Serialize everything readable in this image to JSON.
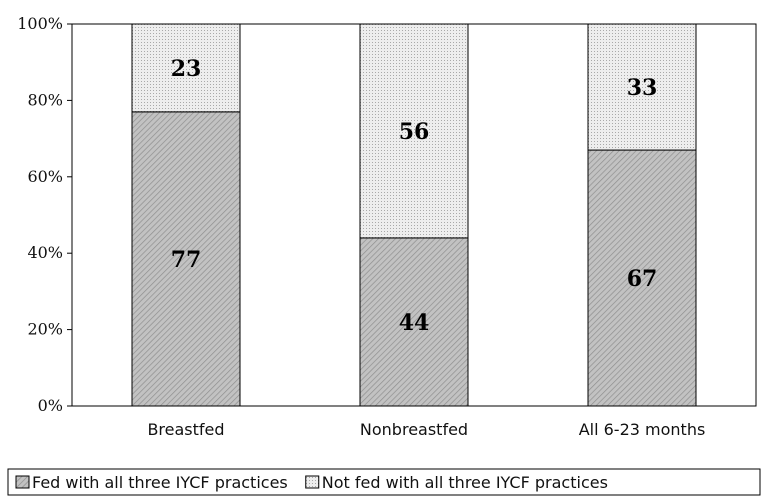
{
  "chart_data": {
    "type": "bar",
    "stacked": true,
    "categories": [
      "Breastfed",
      "Nonbreastfed",
      "All 6-23 months"
    ],
    "series": [
      {
        "name": "Fed with all three IYCF practices",
        "values": [
          77,
          44,
          67
        ],
        "color": "#b8b8b8"
      },
      {
        "name": "Not fed with all three IYCF practices",
        "values": [
          23,
          56,
          33
        ],
        "color": "#e6e6e6"
      }
    ],
    "y_ticks": [
      "0%",
      "20%",
      "40%",
      "60%",
      "80%",
      "100%"
    ],
    "ylim": [
      0,
      100
    ],
    "grid": false,
    "legend_position": "bottom"
  }
}
